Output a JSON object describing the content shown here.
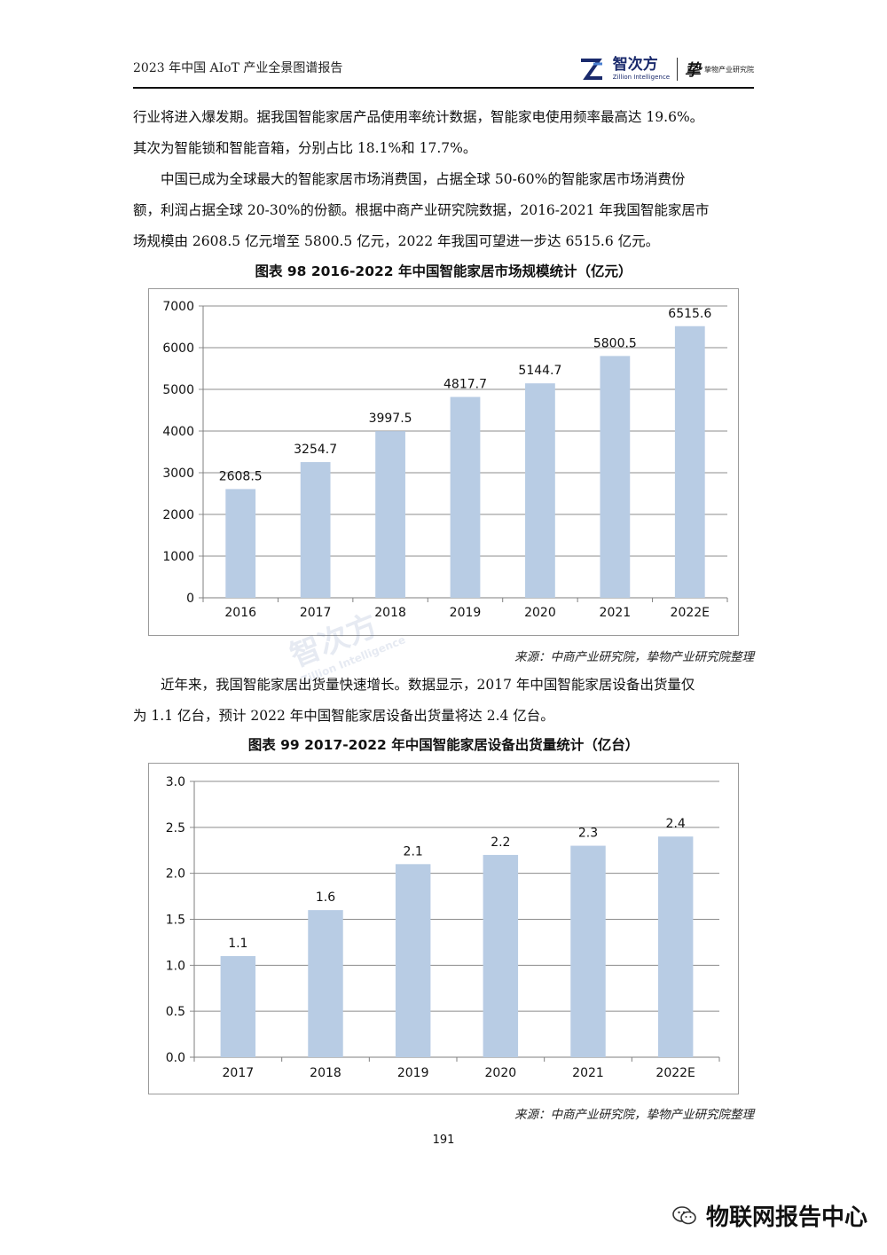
{
  "header": {
    "title": "2023 年中国 AIoT 产业全景图谱报告",
    "logo_primary": "智次方",
    "logo_primary_en": "Zillion Intelligence",
    "logo_secondary": "挚物产业研究院"
  },
  "paragraphs": [
    {
      "lines": [
        "行业将进入爆发期。据我国智能家居产品使用率统计数据，智能家电使用频率最高达 19.6%。",
        "其次为智能锁和智能音箱，分别占比 18.1%和 17.7%。"
      ]
    },
    {
      "lines": [
        "中国已成为全球最大的智能家居市场消费国，占据全球 50-60%的智能家居市场消费份",
        "额，利润占据全球 20-30%的份额。根据中商产业研究院数据，2016-2021 年我国智能家居市",
        "场规模由 2608.5 亿元增至 5800.5 亿元，2022 年我国可望进一步达 6515.6 亿元。"
      ]
    },
    {
      "lines": [
        "近年来，我国智能家居出货量快速增长。数据显示，2017 年中国智能家居设备出货量仅",
        "为 1.1 亿台，预计 2022 年中国智能家居设备出货量将达 2.4 亿台。"
      ]
    }
  ],
  "figures": [
    {
      "title": "图表 98   2016-2022 年中国智能家居市场规模统计（亿元）",
      "source": "来源：中商产业研究院，挚物产业研究院整理"
    },
    {
      "title": "图表 99   2017-2022 年中国智能家居设备出货量统计（亿台）",
      "source": "来源：中商产业研究院，挚物产业研究院整理"
    }
  ],
  "chart_data": [
    {
      "type": "bar",
      "title": "图表 98   2016-2022 年中国智能家居市场规模统计（亿元）",
      "categories": [
        "2016",
        "2017",
        "2018",
        "2019",
        "2020",
        "2021",
        "2022E"
      ],
      "values": [
        2608.5,
        3254.7,
        3997.5,
        4817.7,
        5144.7,
        5800.5,
        6515.6
      ],
      "value_labels": [
        "2608.5",
        "3254.7",
        "3997.5",
        "4817.7",
        "5144.7",
        "5800.5",
        "6515.6"
      ],
      "ylim": [
        0,
        7000
      ],
      "yticks": [
        "0",
        "1000",
        "2000",
        "3000",
        "4000",
        "5000",
        "6000",
        "7000"
      ],
      "xlabel": "",
      "ylabel": "",
      "grid": true,
      "legend": "none",
      "bar_color": "#b8cce4"
    },
    {
      "type": "bar",
      "title": "图表 99   2017-2022 年中国智能家居设备出货量统计（亿台）",
      "categories": [
        "2017",
        "2018",
        "2019",
        "2020",
        "2021",
        "2022E"
      ],
      "values": [
        1.1,
        1.6,
        2.1,
        2.2,
        2.3,
        2.4
      ],
      "value_labels": [
        "1.1",
        "1.6",
        "2.1",
        "2.2",
        "2.3",
        "2.4"
      ],
      "ylim": [
        0,
        3.0
      ],
      "yticks": [
        "0.0",
        "0.5",
        "1.0",
        "1.5",
        "2.0",
        "2.5",
        "3.0"
      ],
      "xlabel": "",
      "ylabel": "",
      "grid": true,
      "legend": "none",
      "bar_color": "#b8cce4"
    }
  ],
  "page_number": "191",
  "wechat": {
    "account": "物联网报告中心"
  }
}
